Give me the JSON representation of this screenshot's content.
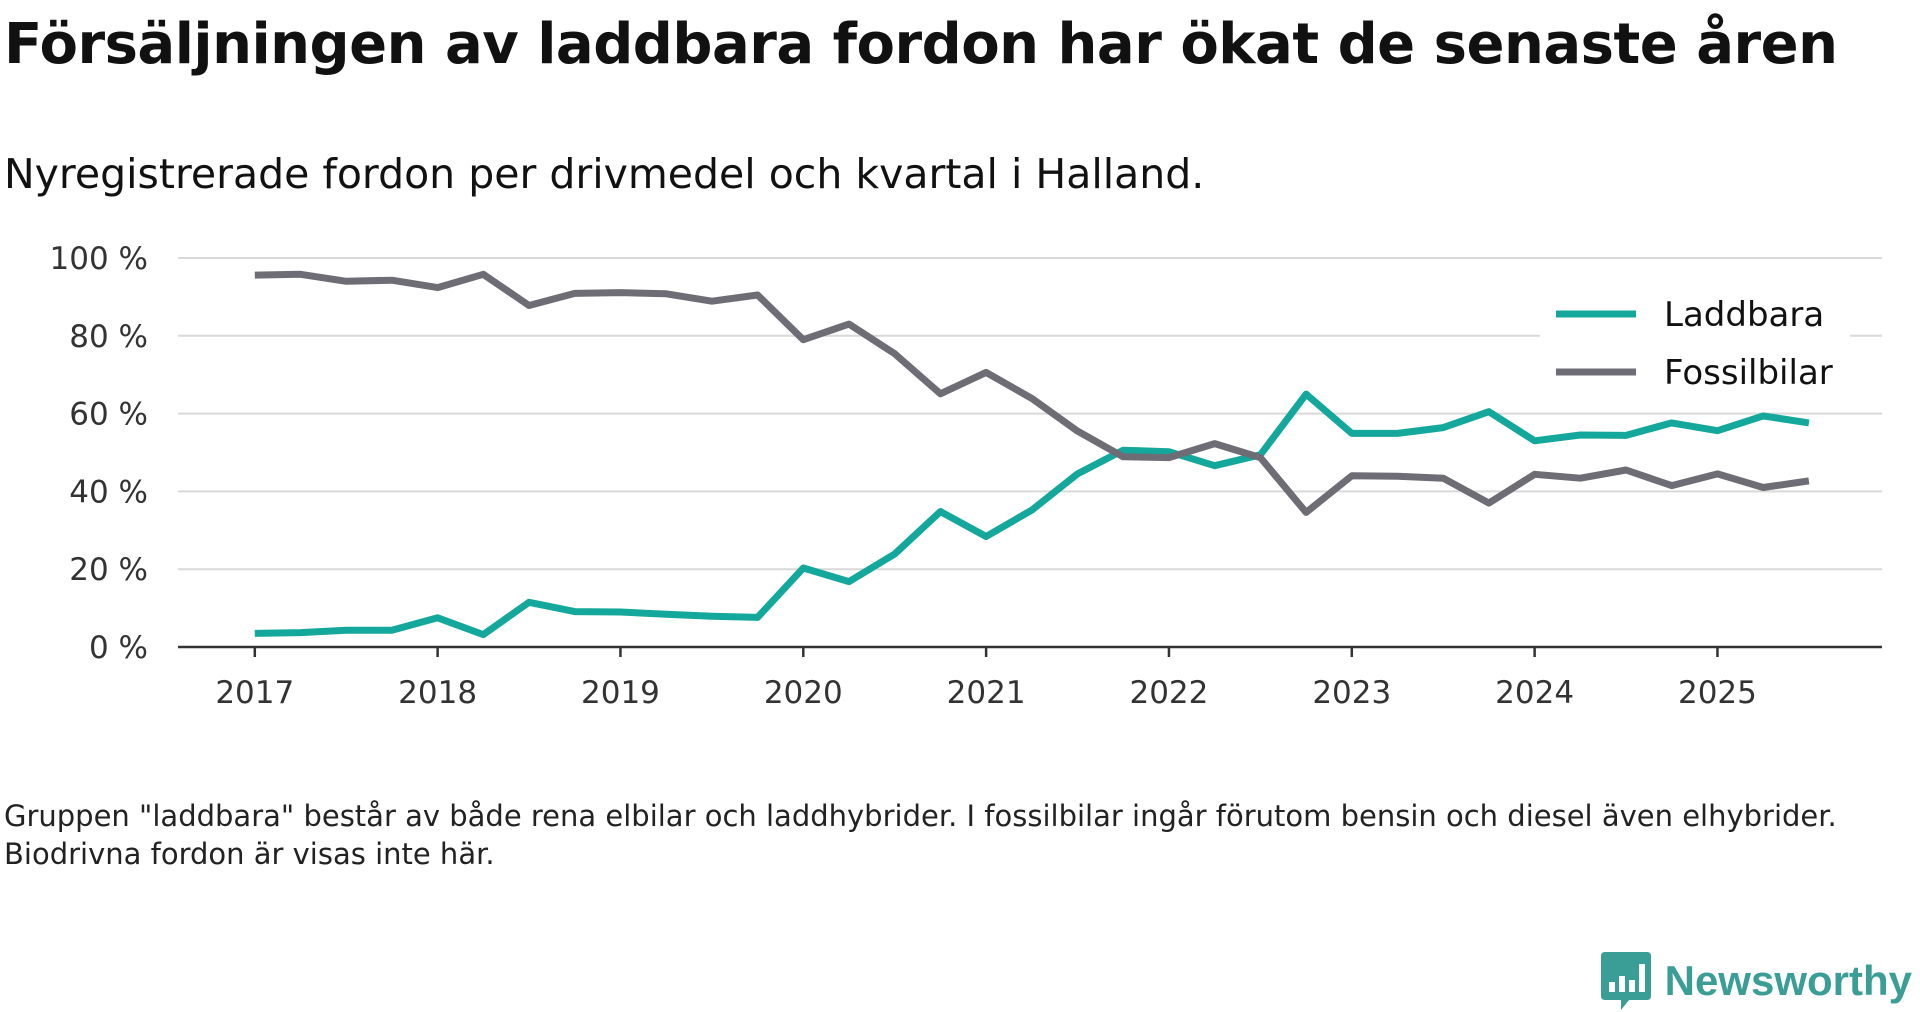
{
  "header": {
    "title": "Försäljningen av laddbara fordon har ökat de senaste åren",
    "subtitle": "Nyregistrerade fordon per drivmedel och kvartal i Halland."
  },
  "footer": {
    "note": "Gruppen \"laddbara\" består av både rena elbilar och laddhybrider. I fossilbilar ingår förutom bensin och diesel även elhybrider. Biodrivna fordon är visas inte här.",
    "brand": "Newsworthy"
  },
  "colors": {
    "laddbara": "#14a89c",
    "fossil": "#6e6d75",
    "grid": "#d9d9d9",
    "axis": "#333333",
    "brand": "#3a9e96"
  },
  "chart_data": {
    "type": "line",
    "title": "Försäljningen av laddbara fordon har ökat de senaste åren",
    "subtitle": "Nyregistrerade fordon per drivmedel och kvartal i Halland.",
    "xlabel": "",
    "ylabel": "",
    "ylim": [
      0,
      100
    ],
    "yticks": [
      0,
      20,
      40,
      60,
      80,
      100
    ],
    "ytick_labels": [
      "0 %",
      "20 %",
      "40 %",
      "60 %",
      "80 %",
      "100 %"
    ],
    "xticks": [
      2017,
      2018,
      2019,
      2020,
      2021,
      2022,
      2023,
      2024,
      2025
    ],
    "xtick_labels": [
      "2017",
      "2018",
      "2019",
      "2020",
      "2021",
      "2022",
      "2023",
      "2024",
      "2025"
    ],
    "x": [
      2017.0,
      2017.25,
      2017.5,
      2017.75,
      2018.0,
      2018.25,
      2018.5,
      2018.75,
      2019.0,
      2019.25,
      2019.5,
      2019.75,
      2020.0,
      2020.25,
      2020.5,
      2020.75,
      2021.0,
      2021.25,
      2021.5,
      2021.75,
      2022.0,
      2022.25,
      2022.5,
      2022.75,
      2023.0,
      2023.25,
      2023.5,
      2023.75,
      2024.0,
      2024.25,
      2024.5,
      2024.75,
      2025.0,
      2025.25,
      2025.5
    ],
    "grid": true,
    "legend_position": "top-right",
    "series": [
      {
        "name": "Laddbara",
        "color": "#14a89c",
        "values": [
          3.5,
          3.7,
          4.3,
          4.3,
          7.5,
          3.2,
          11.5,
          9.1,
          9.0,
          8.4,
          7.9,
          7.6,
          20.3,
          16.8,
          23.9,
          34.8,
          28.4,
          35.2,
          44.5,
          50.6,
          50.2,
          46.6,
          49.4,
          65.0,
          54.9,
          54.9,
          56.4,
          60.5,
          53.0,
          54.5,
          54.4,
          57.6,
          55.6,
          59.4,
          57.6
        ]
      },
      {
        "name": "Fossilbilar",
        "color": "#6e6d75",
        "values": [
          95.6,
          95.8,
          94.0,
          94.3,
          92.4,
          95.8,
          87.8,
          90.9,
          91.1,
          90.8,
          88.9,
          90.5,
          79.0,
          83.0,
          75.4,
          65.1,
          70.6,
          63.9,
          55.5,
          48.9,
          48.7,
          52.3,
          48.7,
          34.6,
          44.0,
          43.9,
          43.4,
          37.0,
          44.4,
          43.4,
          45.5,
          41.5,
          44.5,
          41.0,
          42.7
        ]
      }
    ]
  }
}
